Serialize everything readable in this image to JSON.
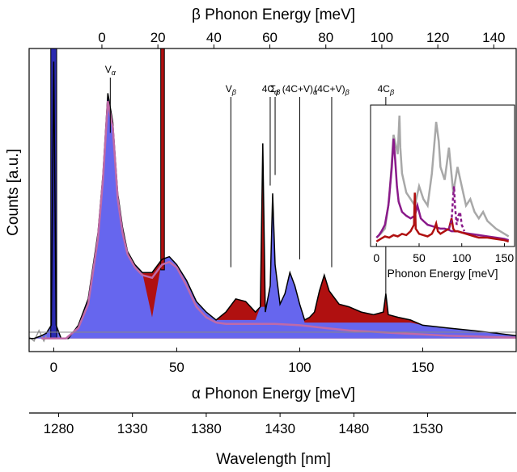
{
  "chart_data": {
    "type": "area",
    "top_axis": {
      "label": "β Phonon Energy [meV]",
      "ticks": [
        "0",
        "20",
        "40",
        "60",
        "80",
        "100",
        "120",
        "140"
      ],
      "range": [
        -26,
        148
      ]
    },
    "alpha_axis": {
      "label": "α Phonon Energy [meV]",
      "ticks": [
        "0",
        "50",
        "100",
        "150"
      ],
      "range": [
        -10,
        188
      ]
    },
    "wavelength_axis": {
      "label": "Wavelength [nm]",
      "ticks": [
        "1280",
        "1330",
        "1380",
        "1430",
        "1480",
        "1530"
      ],
      "range": [
        1260,
        1590
      ]
    },
    "ylabel": "Counts [a.u.]",
    "ylim": [
      -0.05,
      1.1
    ],
    "annotations": [
      {
        "text": "V",
        "sub": "α",
        "x_alpha": 23,
        "y": 0.78
      },
      {
        "text": "V",
        "sub": "β",
        "x_alpha": 72,
        "y": 0.27
      },
      {
        "text": "Σ",
        "sub": "β",
        "x_alpha": 90,
        "y": 0.62
      },
      {
        "text": "4C",
        "sub": "α",
        "x_alpha": 88,
        "y": 0.58
      },
      {
        "text": "(4C+V)",
        "sub": "α",
        "x_alpha": 100,
        "y": 0.3
      },
      {
        "text": "(4C+V)",
        "sub": "β",
        "x_alpha": 113,
        "y": 0.27
      },
      {
        "text": "4C",
        "sub": "β",
        "x_alpha": 135,
        "y": 0.15
      }
    ],
    "series": [
      {
        "color": "#000000",
        "x": [
          -12,
          -8,
          -5,
          -3,
          -1,
          0,
          1,
          3,
          6,
          10,
          14,
          18,
          20,
          22,
          24,
          26,
          28,
          30,
          33,
          36,
          40,
          44,
          47,
          50,
          54,
          58,
          62,
          66,
          70,
          74,
          78,
          82,
          84,
          85,
          86,
          88,
          89,
          90,
          92,
          94,
          96,
          98,
          100,
          102,
          104,
          106,
          108,
          110,
          112,
          116,
          120,
          125,
          130,
          134,
          135,
          136,
          140,
          145,
          150,
          160,
          170,
          180,
          188
        ],
        "y": [
          0.0,
          0.0,
          0.01,
          0.02,
          0.05,
          1.05,
          0.05,
          0.0,
          0.0,
          0.05,
          0.15,
          0.4,
          0.62,
          0.93,
          0.82,
          0.55,
          0.42,
          0.33,
          0.28,
          0.25,
          0.25,
          0.3,
          0.31,
          0.28,
          0.22,
          0.14,
          0.1,
          0.07,
          0.1,
          0.15,
          0.14,
          0.1,
          0.12,
          0.74,
          0.1,
          0.2,
          0.55,
          0.28,
          0.13,
          0.17,
          0.25,
          0.2,
          0.13,
          0.07,
          0.08,
          0.1,
          0.18,
          0.24,
          0.18,
          0.13,
          0.12,
          0.1,
          0.09,
          0.1,
          0.17,
          0.09,
          0.08,
          0.07,
          0.05,
          0.04,
          0.03,
          0.02,
          0.01
        ]
      },
      {
        "color": "#c06aa8",
        "x": [
          -5,
          0,
          5,
          10,
          14,
          18,
          20,
          22,
          24,
          26,
          28,
          30,
          33,
          36,
          40,
          44,
          47,
          50,
          54,
          58,
          62,
          66,
          70,
          80,
          90,
          100,
          110,
          120,
          130,
          140,
          150,
          160,
          170,
          180,
          188
        ],
        "y": [
          0.0,
          0.0,
          0.0,
          0.04,
          0.13,
          0.38,
          0.6,
          0.9,
          0.8,
          0.53,
          0.4,
          0.32,
          0.27,
          0.24,
          0.23,
          0.28,
          0.29,
          0.27,
          0.2,
          0.12,
          0.08,
          0.06,
          0.055,
          0.055,
          0.055,
          0.05,
          0.04,
          0.03,
          0.025,
          0.02,
          0.015,
          0.01,
          0.008,
          0.005,
          0.003
        ]
      }
    ],
    "inset": {
      "xlabel": "Phonon Energy [meV]",
      "ticks": [
        "0",
        "50",
        "100",
        "150"
      ],
      "xlim": [
        -5,
        160
      ],
      "series": [
        {
          "color": "#a8a8a8",
          "x": [
            0,
            5,
            10,
            15,
            20,
            25,
            27,
            28,
            30,
            35,
            40,
            45,
            50,
            55,
            60,
            65,
            70,
            73,
            75,
            80,
            85,
            90,
            95,
            100,
            105,
            110,
            115,
            120,
            125,
            130,
            140,
            150,
            155
          ],
          "y": [
            0.05,
            0.08,
            0.12,
            0.35,
            0.85,
            0.7,
            1.0,
            0.75,
            0.55,
            0.4,
            0.35,
            0.3,
            0.45,
            0.35,
            0.3,
            0.55,
            0.95,
            0.8,
            0.6,
            0.5,
            0.75,
            0.4,
            0.6,
            0.45,
            0.3,
            0.35,
            0.25,
            0.2,
            0.25,
            0.18,
            0.12,
            0.08,
            0.06
          ]
        },
        {
          "color": "#8a1a8a",
          "x": [
            0,
            3,
            6,
            10,
            14,
            18,
            20,
            22,
            24,
            26,
            30,
            35,
            40,
            45,
            48,
            50,
            52,
            55,
            60,
            65,
            70,
            75,
            80,
            85,
            88,
            90,
            95,
            100,
            110,
            120,
            130,
            140,
            150,
            155
          ],
          "y": [
            0.05,
            0.07,
            0.1,
            0.15,
            0.3,
            0.6,
            0.82,
            0.65,
            0.45,
            0.33,
            0.25,
            0.22,
            0.2,
            0.22,
            0.3,
            0.25,
            0.2,
            0.18,
            0.15,
            0.14,
            0.13,
            0.12,
            0.12,
            0.11,
            0.1,
            0.1,
            0.1,
            0.09,
            0.08,
            0.07,
            0.06,
            0.05,
            0.04,
            0.03
          ]
        },
        {
          "color": "#b01010",
          "x": [
            0,
            5,
            10,
            15,
            20,
            25,
            30,
            35,
            40,
            44,
            45,
            46,
            48,
            50,
            55,
            60,
            65,
            68,
            70,
            72,
            75,
            80,
            85,
            88,
            90,
            92,
            95,
            100,
            105,
            110,
            115,
            120,
            130,
            140,
            150,
            155
          ],
          "y": [
            0.02,
            0.04,
            0.06,
            0.05,
            0.07,
            0.06,
            0.08,
            0.07,
            0.1,
            0.15,
            0.4,
            0.12,
            0.1,
            0.08,
            0.07,
            0.06,
            0.08,
            0.12,
            0.16,
            0.1,
            0.08,
            0.1,
            0.12,
            0.2,
            0.12,
            0.1,
            0.1,
            0.09,
            0.08,
            0.07,
            0.06,
            0.05,
            0.05,
            0.04,
            0.03,
            0.02
          ]
        },
        {
          "color": "#8a1a8a",
          "dashed": true,
          "x": [
            85,
            88,
            90,
            91,
            92,
            94,
            96,
            98,
            100,
            103
          ],
          "y": [
            0.12,
            0.18,
            0.38,
            0.45,
            0.3,
            0.15,
            0.22,
            0.25,
            0.15,
            0.1
          ]
        }
      ]
    }
  }
}
